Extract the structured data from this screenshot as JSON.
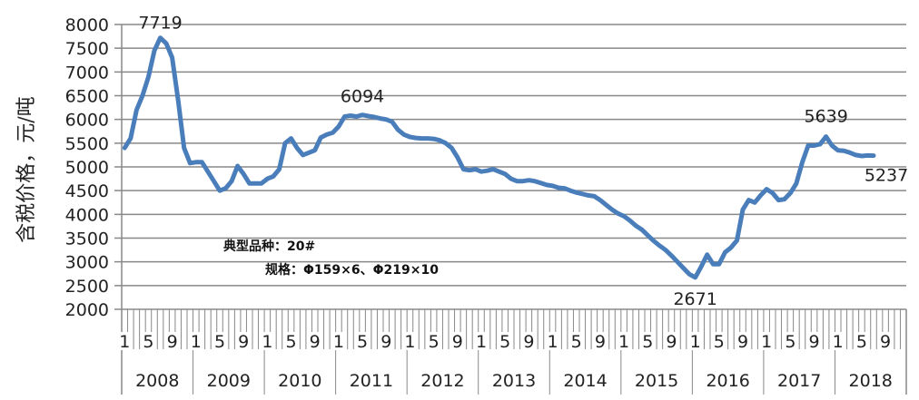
{
  "chart_data": {
    "type": "line",
    "title": "",
    "ylabel": "含税价格，元/吨",
    "xlabel": "",
    "ylim": [
      2000,
      8000
    ],
    "ytick_step": 500,
    "grid": true,
    "line_color": "#4a7ebb",
    "years": [
      "2008",
      "2009",
      "2010",
      "2011",
      "2012",
      "2013",
      "2014",
      "2015",
      "2016",
      "2017",
      "2018"
    ],
    "month_tick_labels": [
      "1",
      "5",
      "9"
    ],
    "annotations": [
      "典型品种：20#",
      "规格：Φ159×6、Φ219×10"
    ],
    "data_labels": [
      {
        "year": "2008",
        "month": 7,
        "value": 7719,
        "text": "7719"
      },
      {
        "year": "2011",
        "month": 5,
        "value": 6094,
        "text": "6094"
      },
      {
        "year": "2016",
        "month": 1,
        "value": 2671,
        "text": "2671"
      },
      {
        "year": "2017",
        "month": 11,
        "value": 5639,
        "text": "5639"
      },
      {
        "year": "2018",
        "month": 7,
        "value": 5237,
        "text": "5237"
      }
    ],
    "series": [
      {
        "values": [
          5400,
          5600,
          6200,
          6500,
          6900,
          7450,
          7719,
          7600,
          7300,
          6400,
          5400,
          5080,
          5100,
          5100,
          4900,
          4700,
          4500,
          4550,
          4700,
          5020,
          4850,
          4650,
          4650,
          4650,
          4750,
          4800,
          4950,
          5500,
          5600,
          5400,
          5250,
          5300,
          5350,
          5620,
          5680,
          5720,
          5850,
          6060,
          6080,
          6060,
          6094,
          6070,
          6050,
          6020,
          6000,
          5950,
          5780,
          5680,
          5630,
          5610,
          5600,
          5600,
          5590,
          5560,
          5500,
          5400,
          5200,
          4950,
          4930,
          4950,
          4900,
          4920,
          4950,
          4900,
          4850,
          4750,
          4700,
          4700,
          4720,
          4700,
          4660,
          4620,
          4600,
          4560,
          4550,
          4500,
          4460,
          4430,
          4400,
          4380,
          4300,
          4200,
          4100,
          4020,
          3960,
          3870,
          3760,
          3680,
          3560,
          3440,
          3340,
          3250,
          3130,
          3000,
          2870,
          2740,
          2671,
          2900,
          3150,
          2950,
          2950,
          3200,
          3300,
          3450,
          4100,
          4300,
          4250,
          4400,
          4530,
          4450,
          4300,
          4320,
          4450,
          4650,
          5100,
          5450,
          5450,
          5480,
          5639,
          5450,
          5350,
          5340,
          5300,
          5250,
          5230,
          5240,
          5237
        ]
      }
    ]
  }
}
